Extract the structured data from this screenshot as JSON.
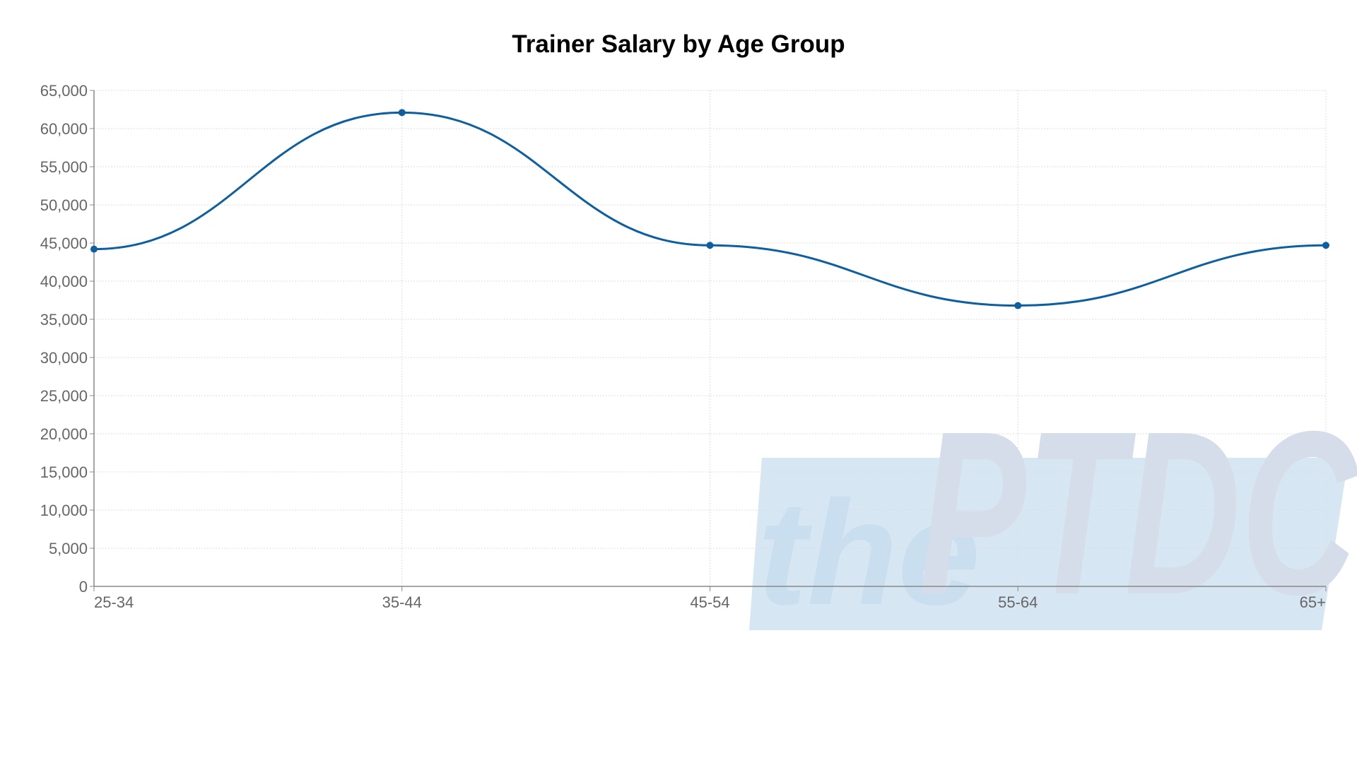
{
  "chart_data": {
    "type": "line",
    "title": "Trainer Salary by Age Group",
    "categories": [
      "25-34",
      "35-44",
      "45-54",
      "55-64",
      "65+"
    ],
    "series": [
      {
        "values": [
          44200,
          62100,
          44700,
          36800,
          44700
        ],
        "color": "#0d5fa0"
      }
    ],
    "ylim": [
      0,
      65000
    ],
    "ytick_step": 5000,
    "grid": true,
    "smooth": true
  },
  "watermark": {
    "prefix": "the",
    "brand": "PTDC",
    "color_light": "#c9dff0",
    "color_dark": "#c6d2e2"
  }
}
